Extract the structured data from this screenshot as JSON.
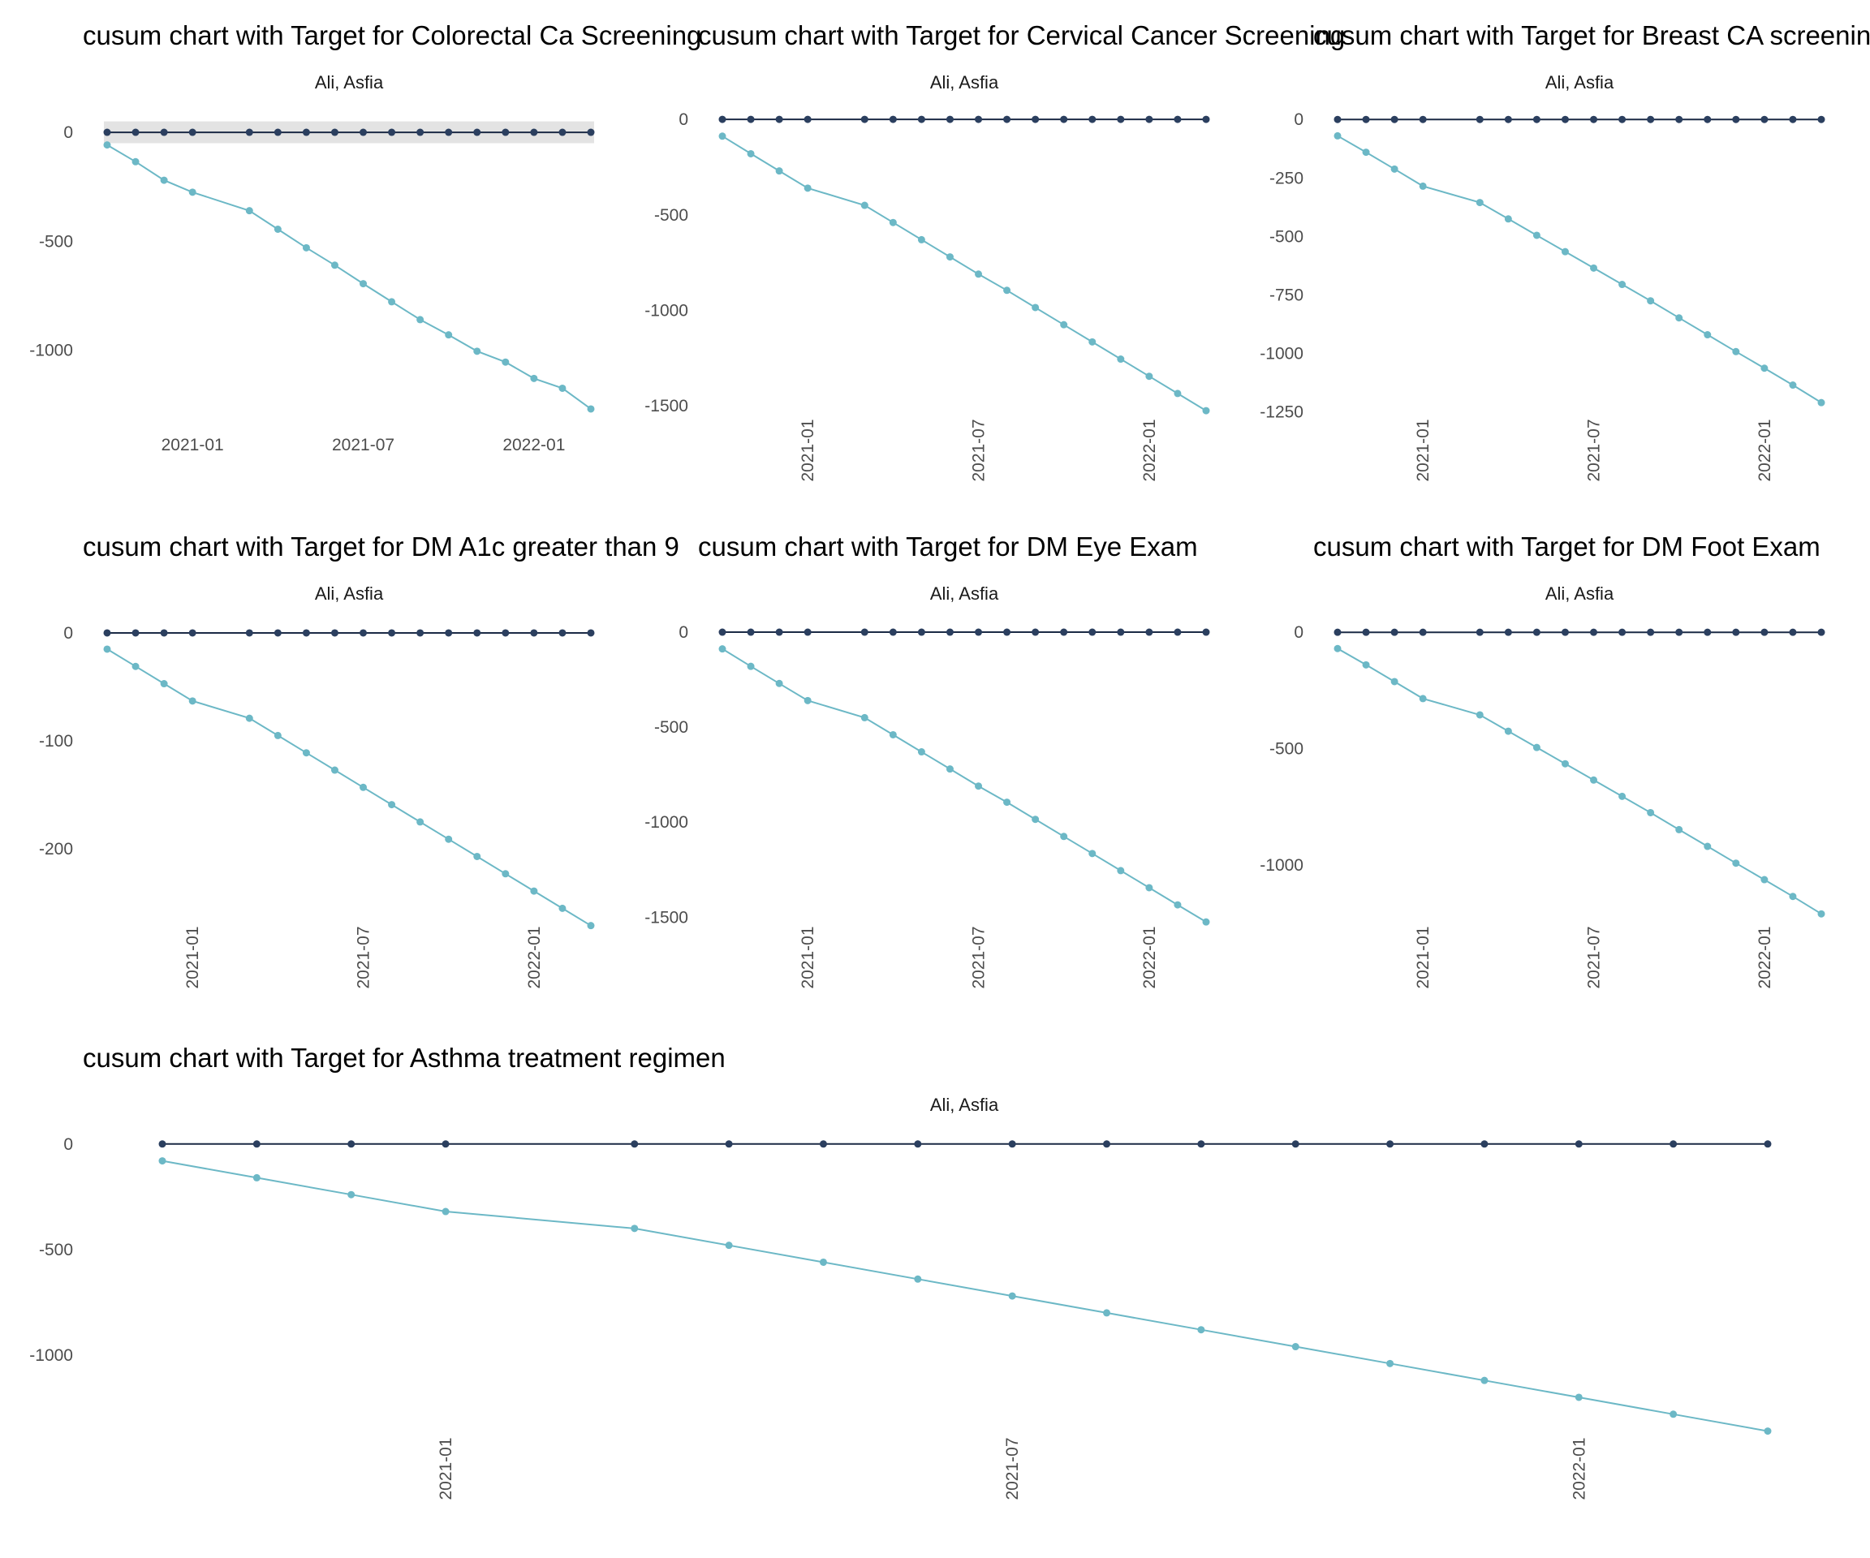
{
  "colors": {
    "cusum_line": "#6cb8c6",
    "cusum_point": "#6cb8c6",
    "target_line": "#1b2a45",
    "target_point": "#2b3f5f",
    "band": "#e3e3e3"
  },
  "chart_data": [
    {
      "type": "line",
      "title": "cusum chart with Target for Colorectal Ca Screening",
      "subtitle": "Ali, Asfia",
      "x": [
        "2020-10",
        "2020-11",
        "2020-12",
        "2021-01",
        "2021-03",
        "2021-04",
        "2021-05",
        "2021-06",
        "2021-07",
        "2021-08",
        "2021-09",
        "2021-10",
        "2021-11",
        "2021-12",
        "2022-01",
        "2022-02",
        "2022-03"
      ],
      "x_ticks": [
        "2021-01",
        "2021-07",
        "2022-01"
      ],
      "x_tick_rotation": "horizontal",
      "y_ticks": [
        0,
        -500,
        -1000
      ],
      "ylim": [
        -1300,
        30
      ],
      "grid": false,
      "band": [
        -50,
        50
      ],
      "series": [
        {
          "values": [
            -58,
            -135,
            -220,
            -275,
            -360,
            -445,
            -530,
            -610,
            -695,
            -778,
            -860,
            -930,
            -1005,
            -1055,
            -1130,
            -1175,
            -1270
          ]
        },
        {
          "values": [
            0,
            0,
            0,
            0,
            0,
            0,
            0,
            0,
            0,
            0,
            0,
            0,
            0,
            0,
            0,
            0,
            0
          ]
        }
      ]
    },
    {
      "type": "line",
      "title": "cusum chart with Target for Cervical Cancer Screening",
      "subtitle": "Ali, Asfia",
      "x": [
        "2020-10",
        "2020-11",
        "2020-12",
        "2021-01",
        "2021-03",
        "2021-04",
        "2021-05",
        "2021-06",
        "2021-07",
        "2021-08",
        "2021-09",
        "2021-10",
        "2021-11",
        "2021-12",
        "2022-01",
        "2022-02",
        "2022-03"
      ],
      "x_ticks": [
        "2021-01",
        "2021-07",
        "2022-01"
      ],
      "x_tick_rotation": "vertical",
      "y_ticks": [
        0,
        -500,
        -1000,
        -1500
      ],
      "ylim": [
        -1550,
        30
      ],
      "grid": false,
      "series": [
        {
          "values": [
            -88,
            -180,
            -270,
            -360,
            -450,
            -540,
            -630,
            -720,
            -810,
            -895,
            -985,
            -1075,
            -1165,
            -1255,
            -1345,
            -1435,
            -1525
          ]
        },
        {
          "values": [
            0,
            0,
            0,
            0,
            0,
            0,
            0,
            0,
            0,
            0,
            0,
            0,
            0,
            0,
            0,
            0,
            0
          ]
        }
      ]
    },
    {
      "type": "line",
      "title": "cusum chart with Target for Breast CA screening",
      "subtitle": "Ali, Asfia",
      "x": [
        "2020-10",
        "2020-11",
        "2020-12",
        "2021-01",
        "2021-03",
        "2021-04",
        "2021-05",
        "2021-06",
        "2021-07",
        "2021-08",
        "2021-09",
        "2021-10",
        "2021-11",
        "2021-12",
        "2022-01",
        "2022-02",
        "2022-03"
      ],
      "x_ticks": [
        "2021-01",
        "2021-07",
        "2022-01"
      ],
      "x_tick_rotation": "vertical",
      "y_ticks": [
        0,
        -250,
        -500,
        -750,
        -1000,
        -1250
      ],
      "ylim": [
        -1265,
        25
      ],
      "grid": false,
      "series": [
        {
          "values": [
            -70,
            -140,
            -212,
            -285,
            -355,
            -425,
            -495,
            -565,
            -635,
            -705,
            -775,
            -848,
            -920,
            -992,
            -1063,
            -1135,
            -1210
          ]
        },
        {
          "values": [
            0,
            0,
            0,
            0,
            0,
            0,
            0,
            0,
            0,
            0,
            0,
            0,
            0,
            0,
            0,
            0,
            0
          ]
        }
      ]
    },
    {
      "type": "line",
      "title": "cusum chart with Target for DM A1c greater than 9",
      "subtitle": "Ali, Asfia",
      "x": [
        "2020-10",
        "2020-11",
        "2020-12",
        "2021-01",
        "2021-03",
        "2021-04",
        "2021-05",
        "2021-06",
        "2021-07",
        "2021-08",
        "2021-09",
        "2021-10",
        "2021-11",
        "2021-12",
        "2022-01",
        "2022-02",
        "2022-03"
      ],
      "x_ticks": [
        "2021-01",
        "2021-07",
        "2022-01"
      ],
      "x_tick_rotation": "vertical",
      "y_ticks": [
        0,
        -100,
        -200
      ],
      "ylim": [
        -272,
        6
      ],
      "grid": false,
      "series": [
        {
          "values": [
            -15,
            -31,
            -47,
            -63,
            -79,
            -95,
            -111,
            -127,
            -143,
            -159,
            -175,
            -191,
            -207,
            -223,
            -239,
            -255,
            -271
          ]
        },
        {
          "values": [
            0,
            0,
            0,
            0,
            0,
            0,
            0,
            0,
            0,
            0,
            0,
            0,
            0,
            0,
            0,
            0,
            0
          ]
        }
      ]
    },
    {
      "type": "line",
      "title": "cusum chart with Target for DM Eye Exam",
      "subtitle": "Ali, Asfia",
      "x": [
        "2020-10",
        "2020-11",
        "2020-12",
        "2021-01",
        "2021-03",
        "2021-04",
        "2021-05",
        "2021-06",
        "2021-07",
        "2021-08",
        "2021-09",
        "2021-10",
        "2021-11",
        "2021-12",
        "2022-01",
        "2022-02",
        "2022-03"
      ],
      "x_ticks": [
        "2021-01",
        "2021-07",
        "2022-01"
      ],
      "x_tick_rotation": "vertical",
      "y_ticks": [
        0,
        -500,
        -1000,
        -1500
      ],
      "ylim": [
        -1550,
        30
      ],
      "grid": false,
      "series": [
        {
          "values": [
            -88,
            -180,
            -270,
            -360,
            -450,
            -540,
            -630,
            -720,
            -810,
            -895,
            -985,
            -1075,
            -1165,
            -1255,
            -1345,
            -1435,
            -1525
          ]
        },
        {
          "values": [
            0,
            0,
            0,
            0,
            0,
            0,
            0,
            0,
            0,
            0,
            0,
            0,
            0,
            0,
            0,
            0,
            0
          ]
        }
      ]
    },
    {
      "type": "line",
      "title": "cusum chart with Target for DM Foot Exam",
      "subtitle": "Ali, Asfia",
      "x": [
        "2020-10",
        "2020-11",
        "2020-12",
        "2021-01",
        "2021-03",
        "2021-04",
        "2021-05",
        "2021-06",
        "2021-07",
        "2021-08",
        "2021-09",
        "2021-10",
        "2021-11",
        "2021-12",
        "2022-01",
        "2022-02",
        "2022-03"
      ],
      "x_ticks": [
        "2021-01",
        "2021-07",
        "2022-01"
      ],
      "x_tick_rotation": "vertical",
      "y_ticks": [
        0,
        -500,
        -1000
      ],
      "ylim": [
        -1265,
        25
      ],
      "grid": false,
      "series": [
        {
          "values": [
            -70,
            -140,
            -212,
            -285,
            -355,
            -425,
            -495,
            -565,
            -635,
            -705,
            -775,
            -848,
            -920,
            -992,
            -1063,
            -1135,
            -1210
          ]
        },
        {
          "values": [
            0,
            0,
            0,
            0,
            0,
            0,
            0,
            0,
            0,
            0,
            0,
            0,
            0,
            0,
            0,
            0,
            0
          ]
        }
      ]
    },
    {
      "type": "line",
      "title": "cusum chart with Target for Asthma treatment regimen",
      "subtitle": "Ali, Asfia",
      "x": [
        "2020-10",
        "2020-11",
        "2020-12",
        "2021-01",
        "2021-03",
        "2021-04",
        "2021-05",
        "2021-06",
        "2021-07",
        "2021-08",
        "2021-09",
        "2021-10",
        "2021-11",
        "2021-12",
        "2022-01",
        "2022-02",
        "2022-03"
      ],
      "x_ticks": [
        "2021-01",
        "2021-07",
        "2022-01"
      ],
      "x_tick_rotation": "vertical",
      "y_ticks": [
        0,
        -500,
        -1000
      ],
      "ylim": [
        -1400,
        30
      ],
      "grid": false,
      "series": [
        {
          "values": [
            -80,
            -160,
            -240,
            -320,
            -400,
            -480,
            -560,
            -640,
            -720,
            -800,
            -880,
            -960,
            -1040,
            -1120,
            -1200,
            -1280,
            -1360
          ]
        },
        {
          "values": [
            0,
            0,
            0,
            0,
            0,
            0,
            0,
            0,
            0,
            0,
            0,
            0,
            0,
            0,
            0,
            0,
            0
          ]
        }
      ]
    }
  ]
}
